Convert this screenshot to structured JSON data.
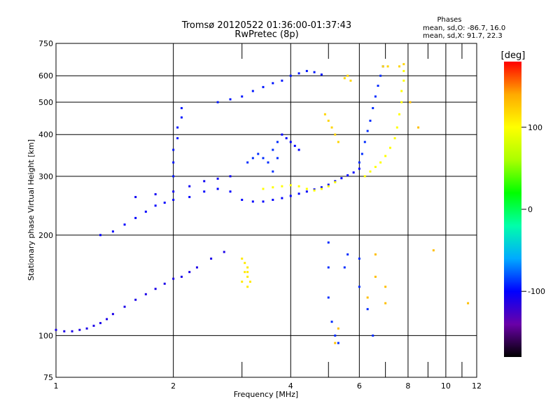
{
  "chart_data": {
    "type": "scatter",
    "title": "Tromsø 20120522 01:36:00-01:37:43",
    "subtitle": "RwPretec (8p)",
    "xlabel": "Frequency [MHz]",
    "ylabel": "Stationary phase Virtual Height [km]",
    "x_scale": "log",
    "y_scale": "log",
    "xlim": [
      1,
      12
    ],
    "ylim": [
      75,
      750
    ],
    "x_ticks": [
      1,
      2,
      4,
      6,
      8,
      10,
      12
    ],
    "x_minor_ticks": [
      3,
      5,
      7,
      9,
      11
    ],
    "y_ticks": [
      75,
      100,
      200,
      300,
      400,
      500,
      600,
      750
    ],
    "grid": true,
    "stats": {
      "heading": "Phases",
      "line_o": "mean, sd,O: -86.7, 16.0",
      "line_x": "mean, sd,X:  91.7, 22.3"
    },
    "colorbar": {
      "label": "[deg]",
      "range": [
        -180,
        180
      ],
      "ticks": [
        100,
        0,
        -100
      ],
      "colormap": "rainbow",
      "colors": [
        "#000000",
        "#6a00a8",
        "#0000ff",
        "#00aaff",
        "#00ffaa",
        "#00ff00",
        "#aaff00",
        "#ffff00",
        "#ffaa00",
        "#ff0000"
      ]
    },
    "traces": [
      {
        "name": "",
        "phase": -110,
        "points": [
          [
            1.0,
            104
          ],
          [
            1.05,
            103
          ],
          [
            1.1,
            103
          ],
          [
            1.15,
            104
          ],
          [
            1.2,
            105
          ],
          [
            1.25,
            107
          ],
          [
            1.3,
            109
          ],
          [
            1.35,
            112
          ],
          [
            1.4,
            116
          ],
          [
            1.5,
            122
          ],
          [
            1.6,
            128
          ],
          [
            1.7,
            133
          ],
          [
            1.8,
            138
          ],
          [
            1.9,
            143
          ],
          [
            2.0,
            148
          ],
          [
            2.1,
            150
          ],
          [
            2.2,
            155
          ],
          [
            2.3,
            160
          ],
          [
            2.5,
            170
          ],
          [
            2.7,
            178
          ]
        ]
      },
      {
        "name": "",
        "phase": -100,
        "points": [
          [
            1.3,
            200
          ],
          [
            1.4,
            205
          ],
          [
            1.5,
            215
          ],
          [
            1.6,
            225
          ],
          [
            1.7,
            235
          ],
          [
            1.8,
            245
          ],
          [
            1.9,
            250
          ],
          [
            2.0,
            255
          ],
          [
            2.2,
            260
          ],
          [
            2.4,
            270
          ],
          [
            2.6,
            275
          ],
          [
            2.8,
            270
          ]
        ]
      },
      {
        "name": "",
        "phase": -105,
        "points": [
          [
            1.6,
            260
          ],
          [
            1.8,
            265
          ],
          [
            2.0,
            270
          ],
          [
            2.2,
            280
          ],
          [
            2.4,
            290
          ],
          [
            2.6,
            295
          ],
          [
            2.8,
            300
          ]
        ]
      },
      {
        "name": "",
        "phase": -95,
        "points": [
          [
            2.0,
            300
          ],
          [
            2.0,
            330
          ],
          [
            2.0,
            360
          ],
          [
            2.05,
            390
          ],
          [
            2.05,
            420
          ],
          [
            2.1,
            450
          ],
          [
            2.1,
            480
          ]
        ]
      },
      {
        "name": "",
        "phase": -95,
        "points": [
          [
            2.6,
            500
          ],
          [
            2.8,
            510
          ],
          [
            3.0,
            520
          ],
          [
            3.2,
            540
          ],
          [
            3.4,
            555
          ],
          [
            3.6,
            570
          ],
          [
            3.8,
            580
          ],
          [
            4.0,
            600
          ],
          [
            4.2,
            610
          ],
          [
            4.4,
            620
          ],
          [
            4.6,
            615
          ],
          [
            4.8,
            605
          ]
        ]
      },
      {
        "name": "",
        "phase": -100,
        "points": [
          [
            3.0,
            255
          ],
          [
            3.2,
            252
          ],
          [
            3.4,
            252
          ],
          [
            3.6,
            255
          ],
          [
            3.8,
            258
          ],
          [
            4.0,
            262
          ],
          [
            4.2,
            266
          ],
          [
            4.4,
            270
          ],
          [
            4.6,
            274
          ],
          [
            4.8,
            278
          ],
          [
            5.0,
            283
          ],
          [
            5.2,
            290
          ],
          [
            5.4,
            296
          ],
          [
            5.6,
            302
          ],
          [
            5.8,
            308
          ],
          [
            6.0,
            316
          ]
        ]
      },
      {
        "name": "",
        "phase": 100,
        "points": [
          [
            3.4,
            275
          ],
          [
            3.6,
            278
          ],
          [
            3.8,
            280
          ],
          [
            4.0,
            282
          ],
          [
            4.2,
            280
          ],
          [
            4.4,
            275
          ],
          [
            4.6,
            272
          ],
          [
            4.8,
            275
          ],
          [
            5.0,
            280
          ],
          [
            5.2,
            288
          ]
        ]
      },
      {
        "name": "",
        "phase": -90,
        "points": [
          [
            6.0,
            330
          ],
          [
            6.1,
            350
          ],
          [
            6.2,
            380
          ],
          [
            6.3,
            410
          ],
          [
            6.4,
            440
          ],
          [
            6.5,
            480
          ],
          [
            6.6,
            520
          ],
          [
            6.7,
            560
          ],
          [
            6.8,
            600
          ],
          [
            6.9,
            640
          ]
        ]
      },
      {
        "name": "",
        "phase": 100,
        "points": [
          [
            6.2,
            300
          ],
          [
            6.4,
            310
          ],
          [
            6.6,
            320
          ],
          [
            6.8,
            330
          ],
          [
            7.0,
            345
          ],
          [
            7.2,
            365
          ],
          [
            7.4,
            390
          ],
          [
            7.5,
            420
          ],
          [
            7.6,
            460
          ],
          [
            7.7,
            500
          ],
          [
            7.7,
            540
          ],
          [
            7.8,
            580
          ],
          [
            7.8,
            620
          ]
        ]
      },
      {
        "name": "",
        "phase": -90,
        "points": [
          [
            3.1,
            330
          ],
          [
            3.2,
            340
          ],
          [
            3.3,
            350
          ],
          [
            3.4,
            340
          ],
          [
            3.5,
            330
          ],
          [
            3.6,
            310
          ],
          [
            3.7,
            340
          ],
          [
            3.7,
            380
          ],
          [
            3.6,
            360
          ]
        ]
      },
      {
        "name": "",
        "phase": 110,
        "points": [
          [
            3.0,
            170
          ],
          [
            3.05,
            165
          ],
          [
            3.1,
            160
          ],
          [
            3.1,
            155
          ],
          [
            3.1,
            150
          ],
          [
            3.15,
            145
          ],
          [
            3.1,
            140
          ],
          [
            3.0,
            145
          ],
          [
            3.05,
            155
          ]
        ]
      },
      {
        "name": "",
        "phase": 120,
        "points": [
          [
            4.9,
            460
          ],
          [
            5.0,
            440
          ],
          [
            5.1,
            420
          ],
          [
            5.2,
            400
          ],
          [
            5.3,
            380
          ]
        ]
      },
      {
        "name": "",
        "phase": -100,
        "points": [
          [
            3.8,
            400
          ],
          [
            3.9,
            390
          ],
          [
            4.0,
            380
          ],
          [
            4.1,
            370
          ],
          [
            4.2,
            360
          ]
        ]
      },
      {
        "name": "",
        "phase": 120,
        "points": [
          [
            5.5,
            590
          ],
          [
            5.6,
            600
          ],
          [
            5.7,
            580
          ],
          [
            6.9,
            640
          ],
          [
            7.6,
            640
          ],
          [
            7.8,
            650
          ],
          [
            7.1,
            640
          ]
        ]
      },
      {
        "name": "",
        "phase": -90,
        "points": [
          [
            5.0,
            190
          ],
          [
            5.0,
            160
          ],
          [
            5.0,
            130
          ],
          [
            5.1,
            110
          ],
          [
            5.2,
            100
          ],
          [
            5.3,
            95
          ],
          [
            5.5,
            160
          ],
          [
            5.6,
            175
          ],
          [
            6.0,
            170
          ],
          [
            6.0,
            140
          ],
          [
            6.3,
            120
          ],
          [
            6.5,
            100
          ]
        ]
      },
      {
        "name": "",
        "phase": 130,
        "points": [
          [
            6.3,
            130
          ],
          [
            6.6,
            175
          ],
          [
            6.6,
            150
          ],
          [
            7.0,
            125
          ],
          [
            7.0,
            140
          ],
          [
            5.3,
            105
          ],
          [
            5.2,
            95
          ],
          [
            8.1,
            500
          ],
          [
            8.5,
            420
          ],
          [
            9.3,
            180
          ],
          [
            11.4,
            125
          ]
        ]
      }
    ]
  }
}
